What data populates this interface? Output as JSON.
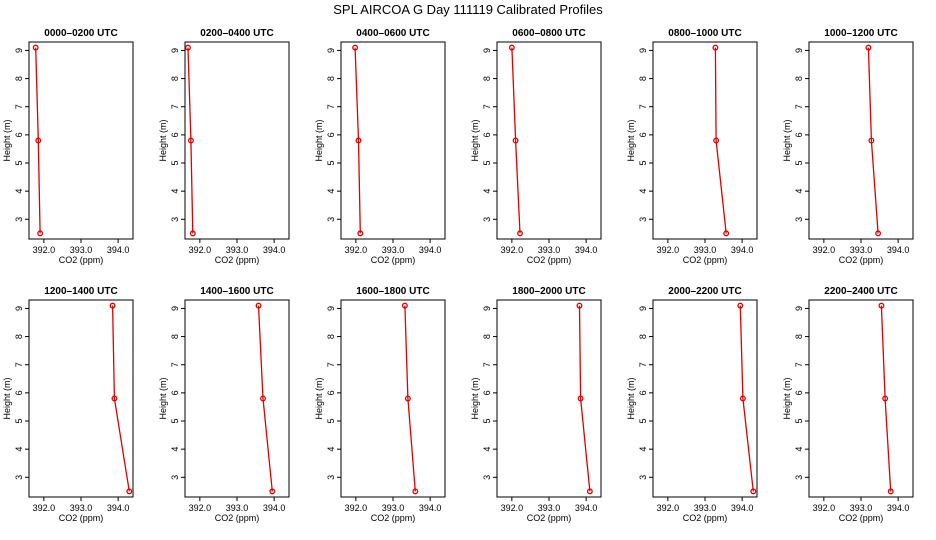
{
  "figure": {
    "title": "SPL AIRCOA G  Day 111119  Calibrated Profiles",
    "series_color": "#e00000"
  },
  "chart_data": [
    {
      "type": "line",
      "title": "0000–0200 UTC",
      "xlabel": "CO2 (ppm)",
      "ylabel": "Height (m)",
      "xlim": [
        391.6,
        394.4
      ],
      "ylim": [
        2.3,
        9.3
      ],
      "xticks": [
        "392.0",
        "393.0",
        "394.0"
      ],
      "yticks": [
        "3",
        "4",
        "5",
        "6",
        "7",
        "8",
        "9"
      ],
      "x": [
        391.78,
        391.85,
        391.9
      ],
      "y": [
        9.1,
        5.8,
        2.5
      ]
    },
    {
      "type": "line",
      "title": "0200–0400 UTC",
      "xlabel": "CO2 (ppm)",
      "ylabel": "Height (m)",
      "xlim": [
        391.6,
        394.4
      ],
      "ylim": [
        2.3,
        9.3
      ],
      "xticks": [
        "392.0",
        "393.0",
        "394.0"
      ],
      "yticks": [
        "3",
        "4",
        "5",
        "6",
        "7",
        "8",
        "9"
      ],
      "x": [
        391.68,
        391.76,
        391.81
      ],
      "y": [
        9.1,
        5.8,
        2.5
      ]
    },
    {
      "type": "line",
      "title": "0400–0600 UTC",
      "xlabel": "CO2 (ppm)",
      "ylabel": "Height (m)",
      "xlim": [
        391.6,
        394.4
      ],
      "ylim": [
        2.3,
        9.3
      ],
      "xticks": [
        "392.0",
        "393.0",
        "394.0"
      ],
      "yticks": [
        "3",
        "4",
        "5",
        "6",
        "7",
        "8",
        "9"
      ],
      "x": [
        391.98,
        392.07,
        392.12
      ],
      "y": [
        9.1,
        5.8,
        2.5
      ]
    },
    {
      "type": "line",
      "title": "0600–0800 UTC",
      "xlabel": "CO2 (ppm)",
      "ylabel": "Height (m)",
      "xlim": [
        391.6,
        394.4
      ],
      "ylim": [
        2.3,
        9.3
      ],
      "xticks": [
        "392.0",
        "393.0",
        "394.0"
      ],
      "yticks": [
        "3",
        "4",
        "5",
        "6",
        "7",
        "8",
        "9"
      ],
      "x": [
        392.0,
        392.1,
        392.22
      ],
      "y": [
        9.1,
        5.8,
        2.5
      ]
    },
    {
      "type": "line",
      "title": "0800–1000 UTC",
      "xlabel": "CO2 (ppm)",
      "ylabel": "Height (m)",
      "xlim": [
        391.6,
        394.4
      ],
      "ylim": [
        2.3,
        9.3
      ],
      "xticks": [
        "392.0",
        "393.0",
        "394.0"
      ],
      "yticks": [
        "3",
        "4",
        "5",
        "6",
        "7",
        "8",
        "9"
      ],
      "x": [
        393.28,
        393.3,
        393.57
      ],
      "y": [
        9.1,
        5.8,
        2.5
      ]
    },
    {
      "type": "line",
      "title": "1000–1200 UTC",
      "xlabel": "CO2 (ppm)",
      "ylabel": "Height (m)",
      "xlim": [
        391.6,
        394.4
      ],
      "ylim": [
        2.3,
        9.3
      ],
      "xticks": [
        "392.0",
        "393.0",
        "394.0"
      ],
      "yticks": [
        "3",
        "4",
        "5",
        "6",
        "7",
        "8",
        "9"
      ],
      "x": [
        393.2,
        393.28,
        393.46
      ],
      "y": [
        9.1,
        5.8,
        2.5
      ]
    },
    {
      "type": "line",
      "title": "1200–1400 UTC",
      "xlabel": "CO2 (ppm)",
      "ylabel": "Height (m)",
      "xlim": [
        391.6,
        394.4
      ],
      "ylim": [
        2.3,
        9.3
      ],
      "xticks": [
        "392.0",
        "393.0",
        "394.0"
      ],
      "yticks": [
        "3",
        "4",
        "5",
        "6",
        "7",
        "8",
        "9"
      ],
      "x": [
        393.85,
        393.9,
        394.3
      ],
      "y": [
        9.1,
        5.8,
        2.5
      ]
    },
    {
      "type": "line",
      "title": "1400–1600 UTC",
      "xlabel": "CO2 (ppm)",
      "ylabel": "Height (m)",
      "xlim": [
        391.6,
        394.4
      ],
      "ylim": [
        2.3,
        9.3
      ],
      "xticks": [
        "392.0",
        "393.0",
        "394.0"
      ],
      "yticks": [
        "3",
        "4",
        "5",
        "6",
        "7",
        "8",
        "9"
      ],
      "x": [
        393.58,
        393.7,
        393.95
      ],
      "y": [
        9.1,
        5.8,
        2.5
      ]
    },
    {
      "type": "line",
      "title": "1600–1800 UTC",
      "xlabel": "CO2 (ppm)",
      "ylabel": "Height (m)",
      "xlim": [
        391.6,
        394.4
      ],
      "ylim": [
        2.3,
        9.3
      ],
      "xticks": [
        "392.0",
        "393.0",
        "394.0"
      ],
      "yticks": [
        "3",
        "4",
        "5",
        "6",
        "7",
        "8",
        "9"
      ],
      "x": [
        393.32,
        393.4,
        393.6
      ],
      "y": [
        9.1,
        5.8,
        2.5
      ]
    },
    {
      "type": "line",
      "title": "1800–2000 UTC",
      "xlabel": "CO2 (ppm)",
      "ylabel": "Height (m)",
      "xlim": [
        391.6,
        394.4
      ],
      "ylim": [
        2.3,
        9.3
      ],
      "xticks": [
        "392.0",
        "393.0",
        "394.0"
      ],
      "yticks": [
        "3",
        "4",
        "5",
        "6",
        "7",
        "8",
        "9"
      ],
      "x": [
        393.82,
        393.85,
        394.1
      ],
      "y": [
        9.1,
        5.8,
        2.5
      ]
    },
    {
      "type": "line",
      "title": "2000–2200 UTC",
      "xlabel": "CO2 (ppm)",
      "ylabel": "Height (m)",
      "xlim": [
        391.6,
        394.4
      ],
      "ylim": [
        2.3,
        9.3
      ],
      "xticks": [
        "392.0",
        "393.0",
        "394.0"
      ],
      "yticks": [
        "3",
        "4",
        "5",
        "6",
        "7",
        "8",
        "9"
      ],
      "x": [
        393.95,
        394.02,
        394.3
      ],
      "y": [
        9.1,
        5.8,
        2.5
      ]
    },
    {
      "type": "line",
      "title": "2200–2400 UTC",
      "xlabel": "CO2 (ppm)",
      "ylabel": "Height (m)",
      "xlim": [
        391.6,
        394.4
      ],
      "ylim": [
        2.3,
        9.3
      ],
      "xticks": [
        "392.0",
        "393.0",
        "394.0"
      ],
      "yticks": [
        "3",
        "4",
        "5",
        "6",
        "7",
        "8",
        "9"
      ],
      "x": [
        393.55,
        393.65,
        393.8
      ],
      "y": [
        9.1,
        5.8,
        2.5
      ]
    }
  ]
}
